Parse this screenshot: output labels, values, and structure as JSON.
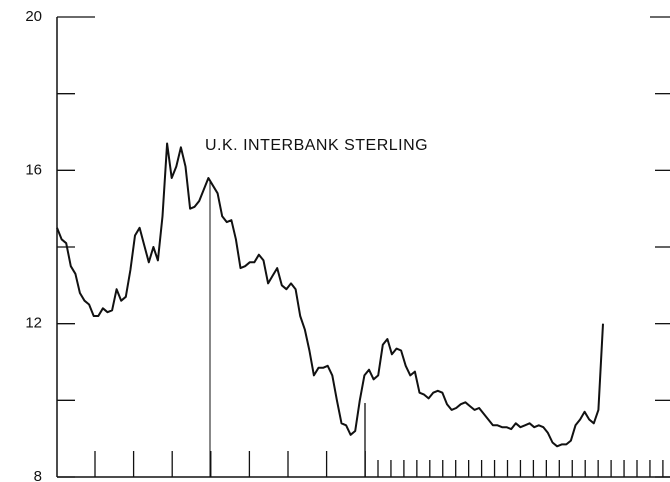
{
  "chart_data": {
    "type": "line",
    "annotation": "U.K. INTERBANK STERLING",
    "ylim": [
      8,
      20
    ],
    "yticks": [
      8,
      12,
      16,
      20
    ],
    "minor_yticks": [
      10,
      14,
      18
    ],
    "color": "#111111",
    "values": [
      14.5,
      14.2,
      14.1,
      13.5,
      13.3,
      12.8,
      12.6,
      12.5,
      12.2,
      12.2,
      12.4,
      12.3,
      12.35,
      12.9,
      12.6,
      12.7,
      13.4,
      14.3,
      14.5,
      14.05,
      13.6,
      14.0,
      13.65,
      14.8,
      16.7,
      15.8,
      16.1,
      16.6,
      16.1,
      15.0,
      15.05,
      15.2,
      15.5,
      15.8,
      15.6,
      15.4,
      14.8,
      14.65,
      14.7,
      14.2,
      13.45,
      13.5,
      13.6,
      13.6,
      13.8,
      13.65,
      13.05,
      13.25,
      13.45,
      13.0,
      12.9,
      13.05,
      12.9,
      12.2,
      11.85,
      11.3,
      10.65,
      10.85,
      10.85,
      10.9,
      10.65,
      10.0,
      9.4,
      9.35,
      9.1,
      9.2,
      10.0,
      10.65,
      10.8,
      10.55,
      10.65,
      11.45,
      11.6,
      11.2,
      11.35,
      11.3,
      10.9,
      10.65,
      10.75,
      10.2,
      10.15,
      10.05,
      10.2,
      10.25,
      10.2,
      9.9,
      9.75,
      9.8,
      9.9,
      9.95,
      9.85,
      9.75,
      9.8,
      9.65,
      9.5,
      9.35,
      9.35,
      9.3,
      9.3,
      9.25,
      9.4,
      9.3,
      9.35,
      9.4,
      9.3,
      9.35,
      9.3,
      9.15,
      8.9,
      8.8,
      8.85,
      8.85,
      8.95,
      9.35,
      9.5,
      9.7,
      9.5,
      9.4,
      9.75,
      12.0
    ]
  }
}
